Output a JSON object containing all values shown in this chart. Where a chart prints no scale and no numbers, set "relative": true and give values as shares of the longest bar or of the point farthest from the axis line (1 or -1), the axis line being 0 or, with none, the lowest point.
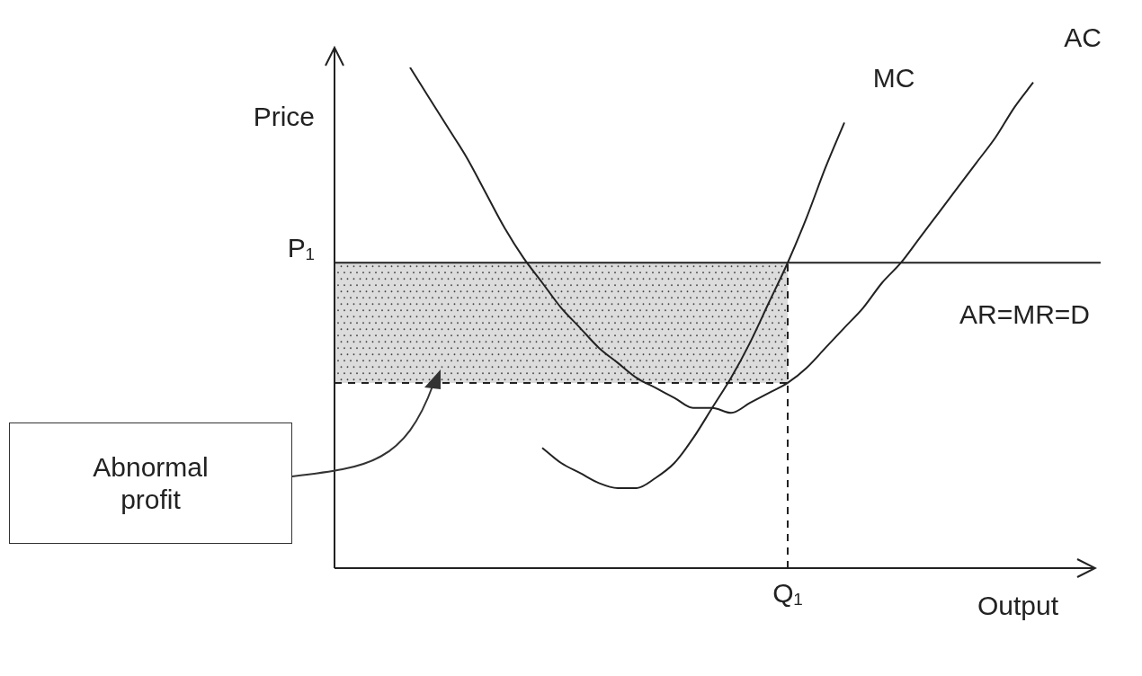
{
  "chart_data": {
    "type": "line",
    "relative": true,
    "xlabel": "Output",
    "ylabel": "Price",
    "categories": [
      null,
      null,
      null,
      null,
      null,
      null,
      null,
      null,
      null,
      null,
      null,
      null,
      null,
      null,
      null,
      null,
      null,
      null,
      null,
      null,
      null,
      null,
      null,
      null,
      null,
      null,
      null,
      null,
      null,
      null,
      null,
      null,
      null,
      null,
      null,
      null,
      null,
      null,
      null,
      null,
      null
    ],
    "series": [
      {
        "name": "AC",
        "color": "#222222",
        "values": [
          null,
          null,
          null,
          null,
          1.0,
          0.94,
          0.88,
          0.82,
          0.75,
          0.68,
          0.62,
          0.57,
          0.52,
          0.48,
          0.44,
          0.41,
          0.38,
          0.36,
          0.34,
          0.32,
          0.32,
          0.31,
          0.33,
          0.35,
          0.37,
          0.4,
          0.44,
          0.48,
          0.52,
          0.57,
          0.61,
          0.66,
          0.71,
          0.76,
          0.81,
          0.86,
          0.92,
          0.97,
          null,
          null,
          null
        ]
      },
      {
        "name": "MC",
        "color": "#222222",
        "values": [
          null,
          null,
          null,
          null,
          null,
          null,
          null,
          null,
          null,
          null,
          null,
          0.24,
          0.21,
          0.19,
          0.17,
          0.16,
          0.16,
          0.18,
          0.21,
          0.26,
          0.32,
          0.38,
          0.45,
          0.53,
          0.61,
          0.7,
          0.8,
          0.89,
          null,
          null,
          null,
          null,
          null,
          null,
          null,
          null,
          null,
          null,
          null,
          null,
          null
        ]
      }
    ],
    "ref_lines": [
      {
        "axis": "y",
        "value": 0.61,
        "label": "AR=MR=D",
        "color": "#222222",
        "line_style": "solid"
      },
      {
        "axis": "y",
        "value": 0.37,
        "color": "#222222",
        "line_style": "dashed"
      }
    ],
    "bands": [
      {
        "axis": "y",
        "from": 0.37,
        "to": 0.61,
        "color": "#dcdcdc"
      }
    ],
    "annotations": [
      "P₁",
      "Abnormal profit",
      "Q₁"
    ],
    "legend": false,
    "grid": false,
    "marker": "none",
    "line_style": "solid",
    "tick_labels": "x"
  }
}
